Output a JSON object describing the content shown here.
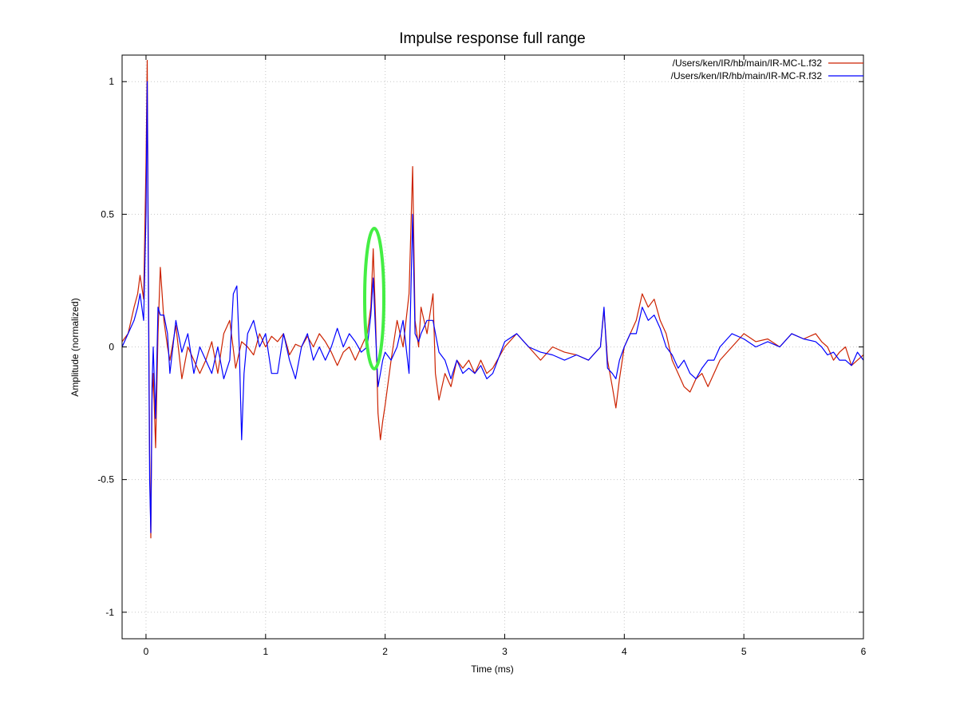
{
  "chart_data": {
    "type": "line",
    "title": "Impulse response full range",
    "xlabel": "Time (ms)",
    "ylabel": "Amplitude (normalized)",
    "xlim": [
      -0.2,
      6
    ],
    "ylim": [
      -1.1,
      1.1
    ],
    "xticks": [
      0,
      1,
      2,
      3,
      4,
      5,
      6
    ],
    "xtick_labels": [
      "0",
      "1",
      "2",
      "3",
      "4",
      "5",
      "6"
    ],
    "yticks": [
      1,
      0.5,
      0,
      -0.5,
      -1
    ],
    "ytick_labels": [
      "1",
      "0.5",
      "0",
      "-0.5",
      "-1"
    ],
    "grid": true,
    "legend_position": "top-right",
    "series": [
      {
        "name": "/Users/ken/IR/hb/main/IR-MC-L.f32",
        "color": "#cc2200",
        "x": [
          -0.2,
          -0.15,
          -0.1,
          -0.07,
          -0.05,
          -0.02,
          0,
          0.01,
          0.02,
          0.03,
          0.04,
          0.05,
          0.06,
          0.08,
          0.1,
          0.12,
          0.15,
          0.18,
          0.2,
          0.25,
          0.3,
          0.35,
          0.4,
          0.45,
          0.5,
          0.55,
          0.6,
          0.65,
          0.7,
          0.75,
          0.8,
          0.85,
          0.9,
          0.95,
          1.0,
          1.05,
          1.1,
          1.15,
          1.2,
          1.25,
          1.3,
          1.35,
          1.4,
          1.45,
          1.5,
          1.55,
          1.6,
          1.65,
          1.7,
          1.75,
          1.8,
          1.85,
          1.88,
          1.9,
          1.92,
          1.94,
          1.96,
          1.98,
          2.0,
          2.05,
          2.1,
          2.15,
          2.2,
          2.23,
          2.25,
          2.28,
          2.3,
          2.35,
          2.4,
          2.42,
          2.45,
          2.5,
          2.55,
          2.6,
          2.65,
          2.7,
          2.75,
          2.8,
          2.85,
          2.9,
          3.0,
          3.1,
          3.2,
          3.3,
          3.4,
          3.5,
          3.6,
          3.7,
          3.8,
          3.83,
          3.86,
          3.9,
          3.93,
          3.96,
          4.0,
          4.05,
          4.1,
          4.15,
          4.2,
          4.25,
          4.3,
          4.35,
          4.4,
          4.45,
          4.5,
          4.55,
          4.6,
          4.65,
          4.7,
          4.75,
          4.8,
          4.9,
          5.0,
          5.1,
          5.2,
          5.3,
          5.4,
          5.5,
          5.6,
          5.65,
          5.7,
          5.75,
          5.8,
          5.85,
          5.9,
          5.95,
          6.0
        ],
        "values": [
          0.02,
          0.05,
          0.15,
          0.2,
          0.27,
          0.18,
          0.7,
          1.08,
          0.3,
          -0.4,
          -0.72,
          -0.2,
          -0.1,
          -0.38,
          0.05,
          0.3,
          0.1,
          0.0,
          -0.05,
          0.08,
          -0.12,
          0.0,
          -0.05,
          -0.1,
          -0.05,
          0.02,
          -0.1,
          0.05,
          0.1,
          -0.08,
          0.02,
          0.0,
          -0.03,
          0.05,
          0.0,
          0.04,
          0.02,
          0.05,
          -0.03,
          0.01,
          0.0,
          0.04,
          0.0,
          0.05,
          0.02,
          -0.02,
          -0.07,
          -0.02,
          0.0,
          -0.05,
          0.0,
          0.05,
          0.15,
          0.37,
          0.1,
          -0.25,
          -0.35,
          -0.28,
          -0.22,
          -0.05,
          0.1,
          0.0,
          0.2,
          0.68,
          0.1,
          0.0,
          0.15,
          0.05,
          0.2,
          -0.1,
          -0.2,
          -0.1,
          -0.15,
          -0.05,
          -0.08,
          -0.05,
          -0.1,
          -0.05,
          -0.1,
          -0.08,
          0.0,
          0.05,
          0.0,
          -0.05,
          0.0,
          -0.02,
          -0.03,
          -0.05,
          0.0,
          0.14,
          -0.05,
          -0.15,
          -0.23,
          -0.12,
          0.0,
          0.05,
          0.1,
          0.2,
          0.15,
          0.18,
          0.1,
          0.05,
          -0.05,
          -0.1,
          -0.15,
          -0.17,
          -0.12,
          -0.1,
          -0.15,
          -0.1,
          -0.05,
          0.0,
          0.05,
          0.02,
          0.03,
          0.0,
          0.05,
          0.03,
          0.05,
          0.02,
          0.0,
          -0.05,
          -0.02,
          0.0,
          -0.07,
          -0.05,
          -0.03
        ]
      },
      {
        "name": "/Users/ken/IR/hb/main/IR-MC-R.f32",
        "color": "#0000ff",
        "x": [
          -0.2,
          -0.15,
          -0.1,
          -0.07,
          -0.05,
          -0.02,
          0,
          0.01,
          0.02,
          0.03,
          0.04,
          0.05,
          0.06,
          0.08,
          0.1,
          0.12,
          0.15,
          0.18,
          0.2,
          0.25,
          0.3,
          0.35,
          0.4,
          0.45,
          0.5,
          0.55,
          0.6,
          0.65,
          0.7,
          0.73,
          0.76,
          0.78,
          0.8,
          0.82,
          0.85,
          0.9,
          0.95,
          1.0,
          1.05,
          1.1,
          1.15,
          1.2,
          1.25,
          1.3,
          1.35,
          1.4,
          1.45,
          1.5,
          1.55,
          1.6,
          1.65,
          1.7,
          1.75,
          1.8,
          1.85,
          1.88,
          1.9,
          1.92,
          1.94,
          1.96,
          1.98,
          2.0,
          2.05,
          2.1,
          2.15,
          2.2,
          2.23,
          2.25,
          2.28,
          2.3,
          2.35,
          2.4,
          2.45,
          2.5,
          2.55,
          2.6,
          2.65,
          2.7,
          2.75,
          2.8,
          2.85,
          2.9,
          3.0,
          3.1,
          3.2,
          3.3,
          3.4,
          3.5,
          3.6,
          3.7,
          3.8,
          3.83,
          3.86,
          3.9,
          3.93,
          3.96,
          4.0,
          4.05,
          4.1,
          4.15,
          4.2,
          4.25,
          4.3,
          4.35,
          4.4,
          4.45,
          4.5,
          4.55,
          4.6,
          4.65,
          4.7,
          4.75,
          4.8,
          4.9,
          5.0,
          5.1,
          5.2,
          5.3,
          5.4,
          5.5,
          5.6,
          5.65,
          5.7,
          5.75,
          5.8,
          5.85,
          5.9,
          5.95,
          6.0
        ],
        "values": [
          0.0,
          0.05,
          0.1,
          0.15,
          0.2,
          0.1,
          0.5,
          1.0,
          0.2,
          -0.5,
          -0.7,
          -0.15,
          0.0,
          -0.27,
          0.15,
          0.12,
          0.12,
          0.05,
          -0.1,
          0.1,
          -0.02,
          0.05,
          -0.1,
          0.0,
          -0.05,
          -0.1,
          0.0,
          -0.12,
          -0.05,
          0.2,
          0.23,
          0.0,
          -0.35,
          -0.1,
          0.05,
          0.1,
          0.0,
          0.05,
          -0.1,
          -0.1,
          0.05,
          -0.05,
          -0.12,
          0.0,
          0.05,
          -0.05,
          0.0,
          -0.05,
          0.0,
          0.07,
          0.0,
          0.05,
          0.02,
          -0.02,
          0.0,
          0.12,
          0.26,
          0.05,
          -0.15,
          -0.1,
          -0.05,
          -0.02,
          -0.05,
          0.0,
          0.1,
          -0.1,
          0.5,
          0.05,
          0.02,
          0.05,
          0.1,
          0.1,
          -0.02,
          -0.05,
          -0.12,
          -0.05,
          -0.1,
          -0.08,
          -0.1,
          -0.07,
          -0.12,
          -0.1,
          0.02,
          0.05,
          0.0,
          -0.02,
          -0.03,
          -0.05,
          -0.03,
          -0.05,
          0.0,
          0.15,
          -0.08,
          -0.1,
          -0.12,
          -0.05,
          0.0,
          0.05,
          0.05,
          0.15,
          0.1,
          0.12,
          0.07,
          0.0,
          -0.03,
          -0.08,
          -0.05,
          -0.1,
          -0.12,
          -0.08,
          -0.05,
          -0.05,
          0.0,
          0.05,
          0.03,
          0.0,
          0.02,
          0.0,
          0.05,
          0.03,
          0.02,
          0.0,
          -0.03,
          -0.02,
          -0.05,
          -0.05,
          -0.07,
          -0.02,
          -0.05
        ]
      }
    ]
  },
  "highlight": {
    "color": "#44ee44"
  }
}
